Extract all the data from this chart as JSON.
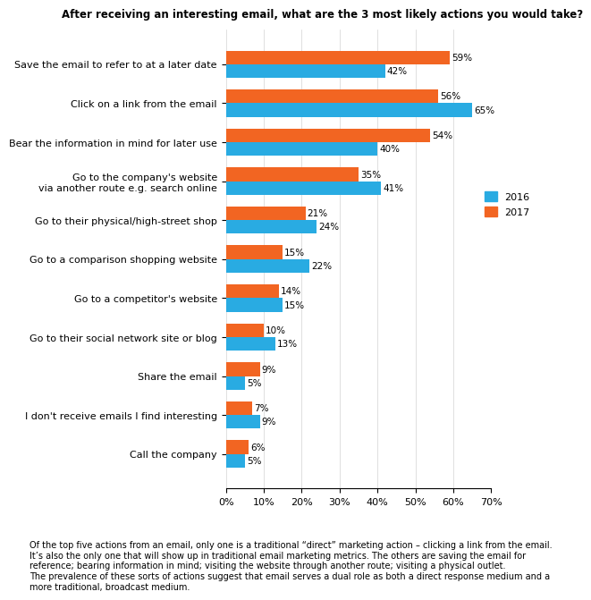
{
  "title": "After receiving an interesting email, what are the 3 most likely actions you would take?",
  "categories": [
    "Call the company",
    "I don't receive emails I find interesting",
    "Share the email",
    "Go to their social network site or blog",
    "Go to a competitor's website",
    "Go to a comparison shopping website",
    "Go to their physical/high-street shop",
    "Go to the company's website\nvia another route e.g. search online",
    "Bear the information in mind for later use",
    "Click on a link from the email",
    "Save the email to refer to at a later date"
  ],
  "values_2017": [
    6,
    7,
    9,
    10,
    14,
    15,
    21,
    35,
    54,
    56,
    59
  ],
  "values_2016": [
    5,
    9,
    5,
    13,
    15,
    22,
    24,
    41,
    40,
    65,
    42
  ],
  "color_2016": "#29ABE2",
  "color_2017": "#F26522",
  "xlim": [
    0,
    70
  ],
  "xtick_values": [
    0,
    10,
    20,
    30,
    40,
    50,
    60,
    70
  ],
  "xtick_labels": [
    "0%",
    "10%",
    "20%",
    "30%",
    "40%",
    "50%",
    "60%",
    "70%"
  ],
  "footer_text": "Of the top five actions from an email, only one is a traditional “direct” marketing action – clicking a link from the email.\nIt’s also the only one that will show up in traditional email marketing metrics. The others are saving the email for\nreference; bearing information in mind; visiting the website through another route; visiting a physical outlet.\nThe prevalence of these sorts of actions suggest that email serves a dual role as both a direct response medium and a\nmore traditional, broadcast medium.",
  "footer_link_text": "traditional email marketing metrics",
  "legend_labels": [
    "2016",
    "2017"
  ]
}
